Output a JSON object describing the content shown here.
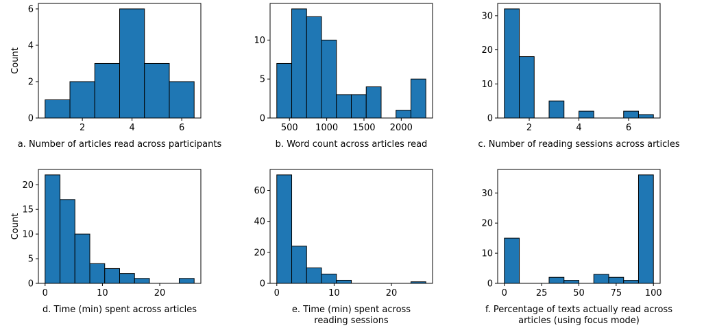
{
  "chart_data": [
    {
      "type": "bar",
      "caption": [
        "a. Number of articles read across participants"
      ],
      "ylabel": "Count",
      "xlim": [
        0.5,
        6.5
      ],
      "ylim": [
        0,
        6.3
      ],
      "xticks": [
        2,
        4,
        6
      ],
      "yticks": [
        0,
        2,
        4,
        6
      ],
      "bins": [
        [
          0.5,
          1.5
        ],
        [
          1.5,
          2.5
        ],
        [
          2.5,
          3.5
        ],
        [
          3.5,
          4.5
        ],
        [
          4.5,
          5.5
        ],
        [
          5.5,
          6.5
        ]
      ],
      "values": [
        1,
        2,
        3,
        6,
        3,
        2
      ]
    },
    {
      "type": "bar",
      "caption": [
        "b. Word count across articles read"
      ],
      "ylabel": "",
      "xlim": [
        330,
        2330
      ],
      "ylim": [
        0,
        14.7
      ],
      "xticks": [
        500,
        1000,
        1500,
        2000
      ],
      "yticks": [
        0,
        5,
        10
      ],
      "bins": [
        [
          330,
          530
        ],
        [
          530,
          730
        ],
        [
          730,
          930
        ],
        [
          930,
          1130
        ],
        [
          1130,
          1330
        ],
        [
          1330,
          1530
        ],
        [
          1530,
          1730
        ],
        [
          1730,
          1930
        ],
        [
          1930,
          2130
        ],
        [
          2130,
          2330
        ]
      ],
      "values": [
        7,
        14,
        13,
        10,
        3,
        3,
        4,
        0,
        1,
        5
      ]
    },
    {
      "type": "bar",
      "caption": [
        "c. Number of reading sessions across articles"
      ],
      "ylabel": "",
      "xlim": [
        1,
        7
      ],
      "ylim": [
        0,
        33.6
      ],
      "xticks": [
        2,
        4,
        6
      ],
      "yticks": [
        0,
        10,
        20,
        30
      ],
      "bins": [
        [
          1,
          1.6
        ],
        [
          1.6,
          2.2
        ],
        [
          2.2,
          2.8
        ],
        [
          2.8,
          3.4
        ],
        [
          3.4,
          4.0
        ],
        [
          4.0,
          4.6
        ],
        [
          4.6,
          5.2
        ],
        [
          5.2,
          5.8
        ],
        [
          5.8,
          6.4
        ],
        [
          6.4,
          7.0
        ]
      ],
      "values": [
        32,
        18,
        0,
        5,
        0,
        2,
        0,
        0,
        2,
        1
      ]
    },
    {
      "type": "bar",
      "caption": [
        "d. Time (min) spent across articles"
      ],
      "ylabel": "Count",
      "xlim": [
        0,
        26
      ],
      "ylim": [
        0,
        23.1
      ],
      "xticks": [
        0,
        10,
        20
      ],
      "yticks": [
        0,
        5,
        10,
        15,
        20
      ],
      "bins": [
        [
          0,
          2.6
        ],
        [
          2.6,
          5.2
        ],
        [
          5.2,
          7.8
        ],
        [
          7.8,
          10.4
        ],
        [
          10.4,
          13.0
        ],
        [
          13.0,
          15.6
        ],
        [
          15.6,
          18.2
        ],
        [
          18.2,
          20.8
        ],
        [
          20.8,
          23.4
        ],
        [
          23.4,
          26.0
        ]
      ],
      "values": [
        22,
        17,
        10,
        4,
        3,
        2,
        1,
        0,
        0,
        1
      ]
    },
    {
      "type": "bar",
      "caption": [
        "e. Time (min) spent across",
        "reading sessions"
      ],
      "ylabel": "",
      "xlim": [
        0,
        26
      ],
      "ylim": [
        0,
        73.5
      ],
      "xticks": [
        0,
        10,
        20
      ],
      "yticks": [
        0,
        20,
        40,
        60
      ],
      "bins": [
        [
          0,
          2.6
        ],
        [
          2.6,
          5.2
        ],
        [
          5.2,
          7.8
        ],
        [
          7.8,
          10.4
        ],
        [
          10.4,
          13.0
        ],
        [
          13.0,
          15.6
        ],
        [
          15.6,
          18.2
        ],
        [
          18.2,
          20.8
        ],
        [
          20.8,
          23.4
        ],
        [
          23.4,
          26.0
        ]
      ],
      "values": [
        70,
        24,
        10,
        6,
        2,
        0,
        0,
        0,
        0,
        1
      ]
    },
    {
      "type": "bar",
      "caption": [
        "f. Percentage of texts actually read across",
        "articles (using focus mode)"
      ],
      "ylabel": "",
      "xlim": [
        0,
        100
      ],
      "ylim": [
        0,
        37.8
      ],
      "xticks": [
        0,
        25,
        50,
        75,
        100
      ],
      "yticks": [
        0,
        10,
        20,
        30
      ],
      "bins": [
        [
          0,
          10
        ],
        [
          10,
          20
        ],
        [
          20,
          30
        ],
        [
          30,
          40
        ],
        [
          40,
          50
        ],
        [
          50,
          60
        ],
        [
          60,
          70
        ],
        [
          70,
          80
        ],
        [
          80,
          90
        ],
        [
          90,
          100
        ]
      ],
      "values": [
        15,
        0,
        0,
        2,
        1,
        0,
        3,
        2,
        1,
        36
      ]
    }
  ]
}
